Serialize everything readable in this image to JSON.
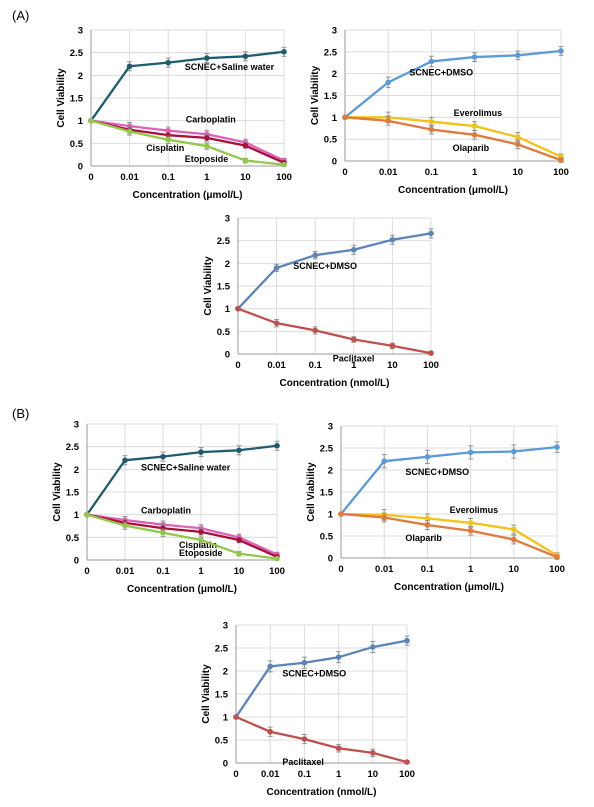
{
  "panel_labels": [
    "(A)",
    "(B)"
  ],
  "chart_data": [
    {
      "type": "line",
      "panel": "(A)",
      "categories": [
        "0",
        "0.01",
        "0.1",
        "1",
        "10",
        "100"
      ],
      "xlabel": "Concentration (μmol/L)",
      "ylabel": "Cell Viability",
      "ylim": [
        0,
        3
      ],
      "yticks": [
        "0",
        "0.5",
        "1",
        "1.5",
        "2",
        "2.5",
        "3"
      ],
      "grid": true,
      "series": [
        {
          "name": "SCNEC+Saline water",
          "color": "#1f5c6e",
          "values": [
            1,
            2.2,
            2.28,
            2.38,
            2.42,
            2.52
          ],
          "errors": [
            0,
            0.1,
            0.1,
            0.1,
            0.1,
            0.1
          ]
        },
        {
          "name": "Carboplatin",
          "color": "#e060b8",
          "values": [
            1,
            0.88,
            0.78,
            0.7,
            0.52,
            0.12
          ],
          "errors": [
            0,
            0.08,
            0.08,
            0.08,
            0.07,
            0.05
          ]
        },
        {
          "name": "Cisplatin",
          "color": "#a8103a",
          "values": [
            1,
            0.8,
            0.68,
            0.62,
            0.45,
            0.07
          ],
          "errors": [
            0,
            0.08,
            0.08,
            0.07,
            0.06,
            0.04
          ]
        },
        {
          "name": "Etoposide",
          "color": "#92c84a",
          "values": [
            1,
            0.76,
            0.58,
            0.44,
            0.12,
            0.03
          ],
          "errors": [
            0,
            0.08,
            0.08,
            0.07,
            0.05,
            0.03
          ]
        }
      ]
    },
    {
      "type": "line",
      "panel": "(A)",
      "categories": [
        "0",
        "0.01",
        "0.1",
        "1",
        "10",
        "100"
      ],
      "xlabel": "Concentration (μmol/L)",
      "ylabel": "Cell Viability",
      "ylim": [
        0,
        3
      ],
      "yticks": [
        "0",
        "0.5",
        "1",
        "1.5",
        "2",
        "2.5",
        "3"
      ],
      "grid": true,
      "series": [
        {
          "name": "SCNEC+DMSO",
          "color": "#5b9bd5",
          "values": [
            1,
            1.8,
            2.28,
            2.38,
            2.42,
            2.52
          ],
          "errors": [
            0,
            0.12,
            0.12,
            0.1,
            0.1,
            0.1
          ]
        },
        {
          "name": "Everolimus",
          "color": "#f2c11a",
          "values": [
            1,
            1,
            0.9,
            0.8,
            0.55,
            0.1
          ],
          "errors": [
            0,
            0.12,
            0.1,
            0.1,
            0.1,
            0.06
          ]
        },
        {
          "name": "Olaparib",
          "color": "#e07a3c",
          "values": [
            1,
            0.92,
            0.72,
            0.6,
            0.38,
            0.02
          ],
          "errors": [
            0,
            0.1,
            0.1,
            0.1,
            0.1,
            0.05
          ]
        }
      ]
    },
    {
      "type": "line",
      "panel": "(A)",
      "categories": [
        "0",
        "0.01",
        "0.1",
        "1",
        "10",
        "100"
      ],
      "xlabel": "Concentration (nmol/L)",
      "ylabel": "Cell Viability",
      "ylim": [
        0,
        3
      ],
      "yticks": [
        "0",
        "0.5",
        "1",
        "1.5",
        "2",
        "2.5",
        "3"
      ],
      "grid": true,
      "series": [
        {
          "name": "SCNEC+DMSO",
          "color": "#5b84b8",
          "values": [
            1,
            1.9,
            2.18,
            2.3,
            2.52,
            2.66
          ],
          "errors": [
            0,
            0.08,
            0.08,
            0.1,
            0.1,
            0.1
          ]
        },
        {
          "name": "Paclitaxel",
          "color": "#c0504d",
          "values": [
            1,
            0.68,
            0.52,
            0.32,
            0.18,
            0.02
          ],
          "errors": [
            0,
            0.08,
            0.08,
            0.06,
            0.06,
            0.03
          ]
        }
      ]
    },
    {
      "type": "line",
      "panel": "(B)",
      "categories": [
        "0",
        "0.01",
        "0.1",
        "1",
        "10",
        "100"
      ],
      "xlabel": "Concentration (μmol/L)",
      "ylabel": "Cell Viability",
      "ylim": [
        0,
        3
      ],
      "yticks": [
        "0",
        "0.5",
        "1",
        "1.5",
        "2",
        "2.5",
        "3"
      ],
      "grid": true,
      "series": [
        {
          "name": "SCNEC+Saline water",
          "color": "#1f5c6e",
          "values": [
            1,
            2.2,
            2.28,
            2.38,
            2.42,
            2.52
          ],
          "errors": [
            0,
            0.1,
            0.1,
            0.1,
            0.1,
            0.1
          ]
        },
        {
          "name": "Carboplatin",
          "color": "#e060b8",
          "values": [
            1,
            0.88,
            0.78,
            0.7,
            0.5,
            0.12
          ],
          "errors": [
            0,
            0.08,
            0.08,
            0.08,
            0.07,
            0.05
          ]
        },
        {
          "name": "Cisplatin",
          "color": "#a8103a",
          "values": [
            1,
            0.82,
            0.7,
            0.62,
            0.44,
            0.07
          ],
          "errors": [
            0,
            0.08,
            0.08,
            0.07,
            0.06,
            0.04
          ]
        },
        {
          "name": "Etoposide",
          "color": "#92c84a",
          "values": [
            1,
            0.76,
            0.6,
            0.44,
            0.14,
            0.03
          ],
          "errors": [
            0,
            0.08,
            0.08,
            0.07,
            0.05,
            0.03
          ]
        }
      ]
    },
    {
      "type": "line",
      "panel": "(B)",
      "categories": [
        "0",
        "0.01",
        "0.1",
        "1",
        "10",
        "100"
      ],
      "xlabel": "Concentration (μmol/L)",
      "ylabel": "Cell Viability",
      "ylim": [
        0,
        3
      ],
      "yticks": [
        "0",
        "0.5",
        "1",
        "1.5",
        "2",
        "2.5",
        "3"
      ],
      "grid": true,
      "series": [
        {
          "name": "SCNEC+DMSO",
          "color": "#5b9bd5",
          "values": [
            1,
            2.2,
            2.3,
            2.4,
            2.42,
            2.52
          ],
          "errors": [
            0,
            0.15,
            0.15,
            0.15,
            0.15,
            0.12
          ]
        },
        {
          "name": "Everolimus",
          "color": "#f2c11a",
          "values": [
            1,
            0.98,
            0.9,
            0.8,
            0.65,
            0.06
          ],
          "errors": [
            0,
            0.12,
            0.1,
            0.1,
            0.1,
            0.06
          ]
        },
        {
          "name": "Olaparib",
          "color": "#e07a3c",
          "values": [
            1,
            0.92,
            0.75,
            0.62,
            0.42,
            0.02
          ],
          "errors": [
            0,
            0.1,
            0.1,
            0.1,
            0.1,
            0.05
          ]
        }
      ]
    },
    {
      "type": "line",
      "panel": "(B)",
      "categories": [
        "0",
        "0.01",
        "0.1",
        "1",
        "10",
        "100"
      ],
      "xlabel": "Concentration (nmol/L)",
      "ylabel": "Cell Viability",
      "ylim": [
        0,
        3
      ],
      "yticks": [
        "0",
        "0.5",
        "1",
        "1.5",
        "2",
        "2.5",
        "3"
      ],
      "grid": true,
      "series": [
        {
          "name": "SCNEC+DMSO",
          "color": "#5b84b8",
          "values": [
            1,
            2.1,
            2.18,
            2.3,
            2.52,
            2.66
          ],
          "errors": [
            0,
            0.12,
            0.12,
            0.12,
            0.12,
            0.1
          ]
        },
        {
          "name": "Paclitaxel",
          "color": "#c0504d",
          "values": [
            1,
            0.68,
            0.52,
            0.32,
            0.22,
            0.02
          ],
          "errors": [
            0,
            0.1,
            0.1,
            0.08,
            0.08,
            0.03
          ]
        }
      ]
    }
  ]
}
